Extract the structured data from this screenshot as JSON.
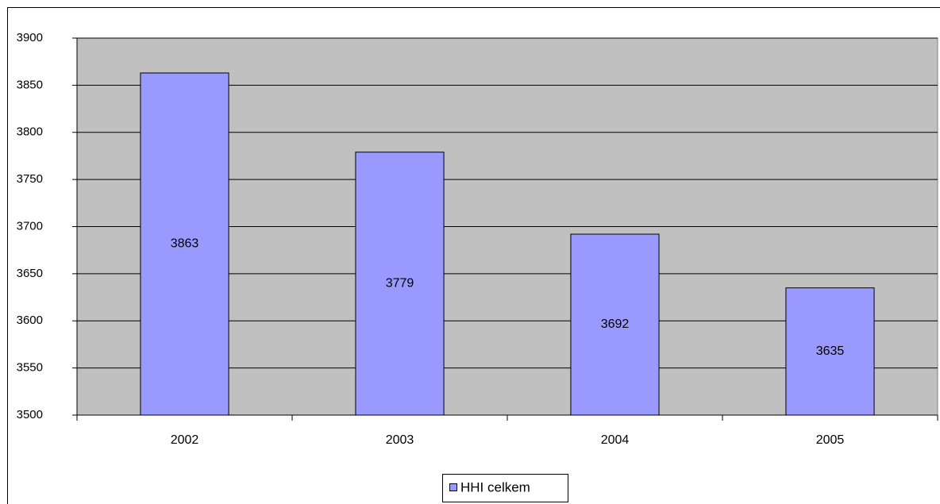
{
  "chart_data": {
    "type": "bar",
    "categories": [
      "2002",
      "2003",
      "2004",
      "2005"
    ],
    "series": [
      {
        "name": "HHI celkem",
        "color": "#9999ff",
        "values": [
          3863,
          3779,
          3692,
          3635
        ]
      }
    ],
    "ylim": [
      3500,
      3900
    ],
    "yticks": [
      3500,
      3550,
      3600,
      3650,
      3700,
      3750,
      3800,
      3850,
      3900
    ],
    "grid": true,
    "legend": "bottom",
    "plot_background": "#c0c0c0"
  }
}
